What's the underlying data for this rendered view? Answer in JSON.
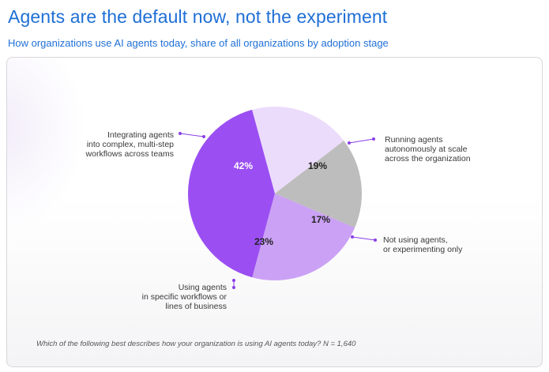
{
  "title": "Agents are the default now, not the experiment",
  "subtitle": "How organizations use AI agents today, share of all organizations by adoption stage",
  "footnote": "Which of the following best describes how your organization is using AI agents today? N = 1,640",
  "chart_data": {
    "type": "pie",
    "title": "Agents are the default now, not the experiment",
    "subtitle": "How organizations use AI agents today, share of all organizations by adoption stage",
    "slices": [
      {
        "label": "Integrating agents\ninto complex, multi-step\nworkflows across teams",
        "value": 42,
        "display": "42%",
        "color": "#9b4ff2"
      },
      {
        "label": "Running agents\nautonomously at scale\nacross the organization",
        "value": 19,
        "display": "19%",
        "color": "#ecdcfb"
      },
      {
        "label": "Not using agents,\nor experimenting only",
        "value": 17,
        "display": "17%",
        "color": "#bdbdbd"
      },
      {
        "label": "Using agents\nin specific workflows or\nlines of business",
        "value": 23,
        "display": "23%",
        "color": "#cba1f5"
      }
    ]
  }
}
